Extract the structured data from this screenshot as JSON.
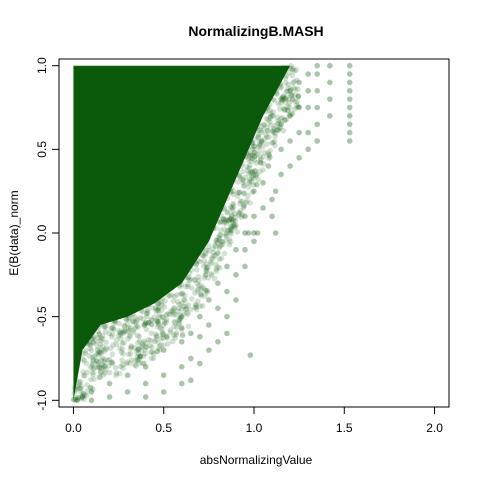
{
  "chart_data": {
    "type": "scatter",
    "title": "NormalizingB.MASH",
    "xlabel": "absNormalizingValue",
    "ylabel": "E(B(data)_norm",
    "xlim": [
      -0.08,
      2.08
    ],
    "ylim": [
      -1.04,
      1.04
    ],
    "x_ticks": [
      0.0,
      0.5,
      1.0,
      1.5,
      2.0
    ],
    "x_tick_labels": [
      "0.0",
      "0.5",
      "1.0",
      "1.5",
      "2.0"
    ],
    "y_ticks": [
      -1.0,
      -0.5,
      0.0,
      0.5,
      1.0
    ],
    "y_tick_labels": [
      "-1.0",
      "-0.5",
      "0.0",
      "0.5",
      "1.0"
    ],
    "grid": false,
    "point_color": "#0b5a0b",
    "point_alpha": 0.18,
    "dense_region": {
      "description_values": {
        "x_min": 0.0,
        "upper_boundary": [
          [
            0.0,
            1.0
          ],
          [
            1.1,
            1.0
          ]
        ],
        "lower_boundary": [
          [
            0.0,
            -1.0
          ],
          [
            0.05,
            -0.7
          ],
          [
            0.15,
            -0.55
          ],
          [
            0.3,
            -0.5
          ],
          [
            0.45,
            -0.42
          ],
          [
            0.6,
            -0.3
          ],
          [
            0.75,
            -0.05
          ],
          [
            0.85,
            0.2
          ],
          [
            0.95,
            0.45
          ],
          [
            1.05,
            0.7
          ],
          [
            1.15,
            0.9
          ],
          [
            1.2,
            1.0
          ]
        ]
      }
    },
    "series": [
      {
        "values": [
          [
            1.53,
            1.0
          ],
          [
            1.53,
            0.95
          ],
          [
            1.53,
            0.9
          ],
          [
            1.53,
            0.85
          ],
          [
            1.53,
            0.8
          ],
          [
            1.53,
            0.75
          ],
          [
            1.53,
            0.7
          ],
          [
            1.53,
            0.65
          ],
          [
            1.53,
            0.6
          ],
          [
            1.53,
            0.55
          ],
          [
            1.42,
            1.0
          ],
          [
            1.42,
            0.9
          ],
          [
            1.42,
            0.8
          ],
          [
            1.42,
            0.7
          ],
          [
            1.35,
            1.0
          ],
          [
            1.35,
            0.95
          ],
          [
            1.35,
            0.85
          ],
          [
            1.35,
            0.75
          ],
          [
            1.35,
            0.65
          ],
          [
            1.35,
            0.55
          ],
          [
            1.3,
            0.95
          ],
          [
            1.3,
            0.85
          ],
          [
            1.3,
            0.75
          ],
          [
            1.3,
            0.6
          ],
          [
            1.3,
            0.5
          ],
          [
            1.25,
            0.9
          ],
          [
            1.25,
            0.75
          ],
          [
            1.25,
            0.6
          ],
          [
            1.25,
            0.45
          ],
          [
            1.2,
            0.85
          ],
          [
            1.2,
            0.7
          ],
          [
            1.2,
            0.55
          ],
          [
            1.2,
            0.4
          ],
          [
            1.15,
            0.8
          ],
          [
            1.15,
            0.65
          ],
          [
            1.15,
            0.5
          ],
          [
            1.15,
            0.35
          ],
          [
            1.12,
            0.0
          ],
          [
            1.02,
            0.0
          ],
          [
            0.97,
            0.0
          ],
          [
            1.0,
            0.0
          ],
          [
            0.95,
            0.0
          ],
          [
            1.1,
            0.2
          ],
          [
            1.1,
            0.1
          ],
          [
            1.05,
            0.3
          ],
          [
            1.05,
            0.15
          ],
          [
            1.0,
            0.25
          ],
          [
            1.0,
            0.1
          ],
          [
            1.0,
            -0.05
          ],
          [
            0.95,
            0.1
          ],
          [
            0.95,
            -0.1
          ],
          [
            0.95,
            -0.2
          ],
          [
            0.9,
            -0.1
          ],
          [
            0.9,
            -0.25
          ],
          [
            0.9,
            -0.4
          ],
          [
            0.85,
            -0.2
          ],
          [
            0.85,
            -0.35
          ],
          [
            0.85,
            -0.5
          ],
          [
            0.85,
            -0.6
          ],
          [
            0.8,
            -0.3
          ],
          [
            0.8,
            -0.45
          ],
          [
            0.8,
            -0.65
          ],
          [
            0.75,
            -0.4
          ],
          [
            0.75,
            -0.55
          ],
          [
            0.75,
            -0.7
          ],
          [
            0.7,
            -0.5
          ],
          [
            0.7,
            -0.62
          ],
          [
            0.7,
            -0.78
          ],
          [
            0.65,
            -0.6
          ],
          [
            0.65,
            -0.75
          ],
          [
            0.65,
            -0.88
          ],
          [
            0.6,
            -0.65
          ],
          [
            0.6,
            -0.8
          ],
          [
            0.6,
            -0.9
          ],
          [
            0.5,
            -0.7
          ],
          [
            0.5,
            -0.85
          ],
          [
            0.5,
            -0.95
          ],
          [
            0.4,
            -0.8
          ],
          [
            0.4,
            -0.9
          ],
          [
            0.4,
            -0.98
          ],
          [
            0.3,
            -0.85
          ],
          [
            0.3,
            -0.95
          ],
          [
            0.2,
            -0.9
          ],
          [
            0.2,
            -0.98
          ],
          [
            0.1,
            -0.95
          ],
          [
            0.1,
            -1.0
          ],
          [
            0.05,
            -0.98
          ],
          [
            0.02,
            -1.0
          ],
          [
            0.98,
            -0.73
          ],
          [
            1.12,
            0.25
          ],
          [
            1.08,
            0.4
          ]
        ]
      }
    ]
  }
}
